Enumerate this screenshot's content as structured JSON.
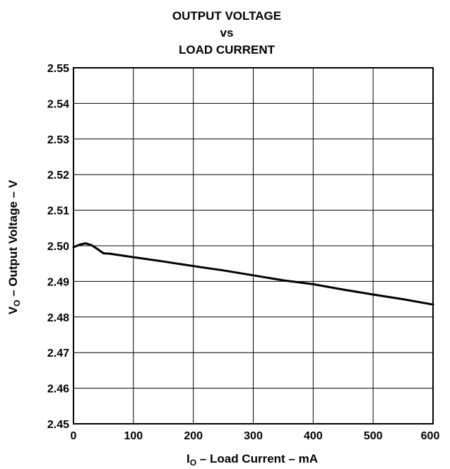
{
  "chart_data": {
    "type": "line",
    "title_lines": [
      "OUTPUT VOLTAGE",
      "vs",
      "LOAD CURRENT"
    ],
    "xlabel": {
      "main": "I",
      "sub": "O",
      "rest": " – Load Current – mA"
    },
    "ylabel": {
      "main": "V",
      "sub": "O",
      "rest": " – Output Voltage – V"
    },
    "xlim": [
      0,
      600
    ],
    "ylim": [
      2.45,
      2.55
    ],
    "x_ticks": [
      0,
      100,
      200,
      300,
      400,
      500,
      600
    ],
    "y_ticks": [
      2.45,
      2.46,
      2.47,
      2.48,
      2.49,
      2.5,
      2.51,
      2.52,
      2.53,
      2.54,
      2.55
    ],
    "grid": true,
    "series": [
      {
        "x": [
          0,
          10,
          20,
          30,
          40,
          50,
          60,
          100,
          150,
          200,
          250,
          300,
          350,
          400,
          450,
          500,
          550,
          600
        ],
        "y": [
          2.4996,
          2.5003,
          2.5007,
          2.5002,
          2.4991,
          2.4979,
          2.4978,
          2.4968,
          2.4956,
          2.4943,
          2.4931,
          2.4917,
          2.4903,
          2.4892,
          2.4877,
          2.4863,
          2.485,
          2.4835
        ]
      }
    ]
  }
}
